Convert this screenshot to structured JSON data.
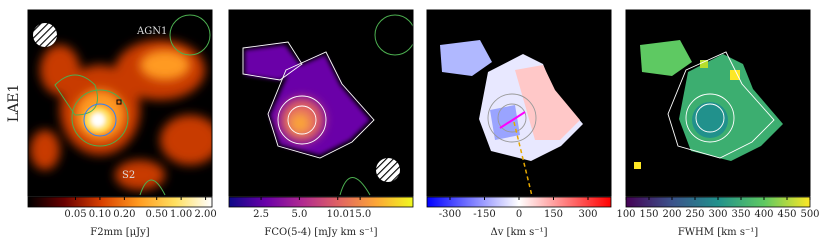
{
  "row_label": "LAE1",
  "panels": [
    {
      "annotations": [
        "AGN1",
        "S2"
      ],
      "colorbar": {
        "label": "F2mm [μJy]",
        "scale": "log",
        "lim": [
          0.013,
          2.4
        ],
        "colors": [
          "#000000",
          "#6a0000",
          "#d84000",
          "#ff9a20",
          "#ffe060",
          "#ffffff"
        ],
        "ticks": [
          {
            "value": 0.05,
            "label": "0.05"
          },
          {
            "value": 0.1,
            "label": "0.10"
          },
          {
            "value": 0.2,
            "label": "0.20"
          },
          {
            "value": 0.5,
            "label": "0.50"
          },
          {
            "value": 1,
            "label": "1.00"
          },
          {
            "value": 2,
            "label": "2.00"
          }
        ]
      }
    },
    {
      "colorbar": {
        "label": "FCO(5-4) [mJy km s⁻¹]",
        "scale": "log",
        "lim": [
          1.4,
          39
        ],
        "colors": [
          "#0d0887",
          "#6a00a8",
          "#b12a90",
          "#e16462",
          "#fca636",
          "#f0f921"
        ],
        "ticks": [
          {
            "value": 2.5,
            "label": "2.5"
          },
          {
            "value": 5,
            "label": "5.0"
          },
          {
            "value": 10,
            "label": "10.0"
          },
          {
            "value": 15,
            "label": "15.0"
          }
        ]
      }
    },
    {
      "colorbar": {
        "label": "Δv [km s⁻¹]",
        "scale": "linear",
        "lim": [
          -400,
          400
        ],
        "colors": [
          "#0000ff",
          "#8080ff",
          "#ffffff",
          "#ff8080",
          "#ff0000"
        ],
        "ticks": [
          -300,
          -150,
          0,
          150,
          300
        ]
      }
    },
    {
      "colorbar": {
        "label": "FWHM [km s⁻¹]",
        "scale": "linear",
        "lim": [
          100,
          500
        ],
        "colors": [
          "#440154",
          "#3b528b",
          "#21918c",
          "#5ec962",
          "#fde725"
        ],
        "ticks": [
          100,
          150,
          200,
          250,
          300,
          350,
          400,
          450,
          500
        ]
      }
    }
  ]
}
